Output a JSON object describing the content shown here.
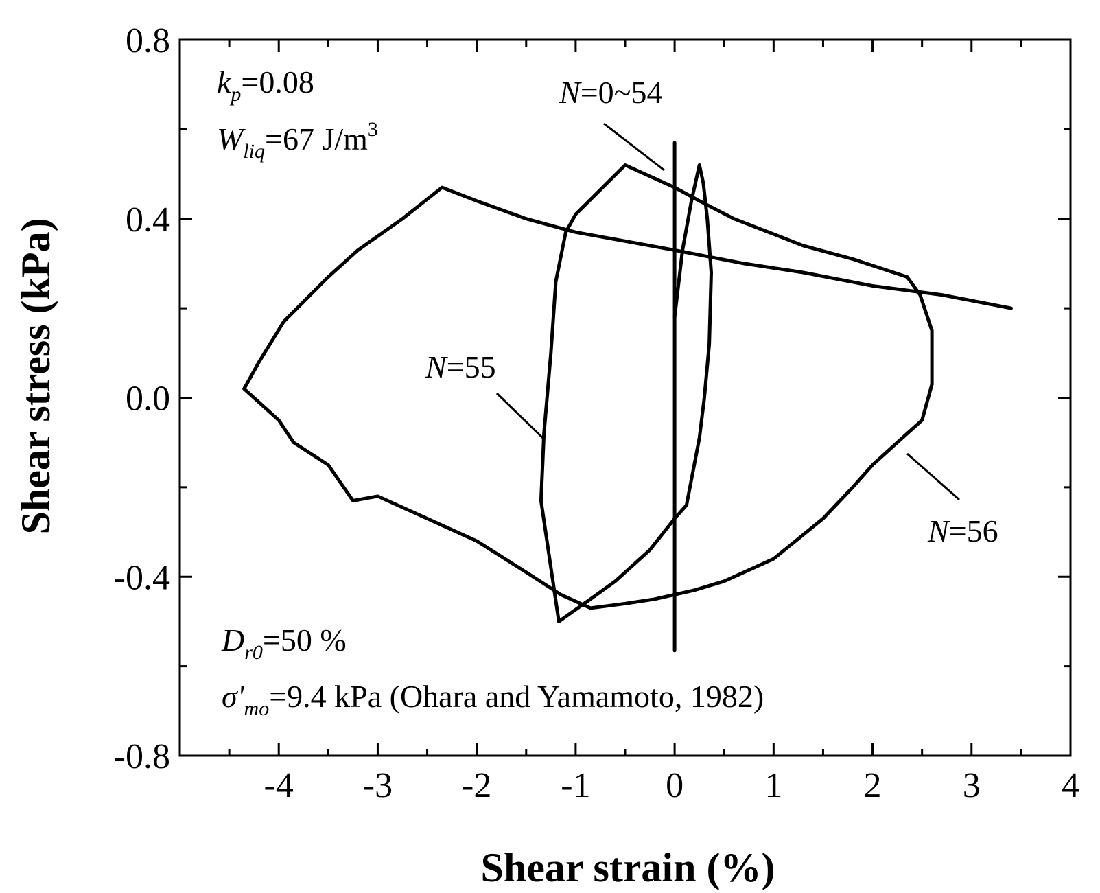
{
  "chart_data": {
    "type": "line",
    "xlabel": "Shear strain (%)",
    "ylabel": "Shear stress (kPa)",
    "xlim": [
      -5,
      4
    ],
    "ylim": [
      -0.8,
      0.8
    ],
    "x_ticks": [
      -4,
      -3,
      -2,
      -1,
      0,
      1,
      2,
      3,
      4
    ],
    "y_ticks": [
      -0.8,
      -0.4,
      0.0,
      0.4,
      0.8
    ],
    "y_tick_labels": [
      "-0.8",
      "-0.4",
      "0.0",
      "0.4",
      "0.8"
    ],
    "grid": false,
    "series": [
      {
        "label": "N=0~54",
        "points": [
          [
            0,
            -0.565
          ],
          [
            0,
            0.57
          ]
        ]
      },
      {
        "label": "N=55",
        "points": [
          [
            0,
            0.18
          ],
          [
            0.08,
            0.33
          ],
          [
            0.17,
            0.44
          ],
          [
            0.25,
            0.52
          ],
          [
            0.29,
            0.48
          ],
          [
            0.33,
            0.4
          ],
          [
            0.37,
            0.28
          ],
          [
            0.35,
            0.12
          ],
          [
            0.3,
            0.0
          ],
          [
            0.25,
            -0.09
          ],
          [
            0.12,
            -0.24
          ],
          [
            0,
            -0.27
          ],
          [
            -0.25,
            -0.34
          ],
          [
            -0.6,
            -0.41
          ],
          [
            -0.85,
            -0.45
          ],
          [
            -1.17,
            -0.5
          ],
          [
            -1.35,
            -0.23
          ],
          [
            -1.32,
            -0.08
          ],
          [
            -1.25,
            0.1
          ],
          [
            -1.2,
            0.26
          ],
          [
            -1.1,
            0.37
          ],
          [
            -1.0,
            0.41
          ],
          [
            -0.5,
            0.52
          ],
          [
            0,
            0.47
          ],
          [
            0.25,
            0.44
          ],
          [
            0.6,
            0.4
          ],
          [
            1.3,
            0.34
          ],
          [
            1.8,
            0.31
          ],
          [
            2.35,
            0.27
          ],
          [
            2.48,
            0.23
          ],
          [
            2.6,
            0.15
          ],
          [
            2.6,
            0.03
          ],
          [
            2.5,
            -0.05
          ],
          [
            2.35,
            -0.08
          ],
          [
            2.0,
            -0.15
          ],
          [
            1.8,
            -0.2
          ],
          [
            1.5,
            -0.27
          ],
          [
            1.0,
            -0.36
          ],
          [
            0.5,
            -0.41
          ],
          [
            0.2,
            -0.43
          ],
          [
            0,
            -0.44
          ],
          [
            -0.2,
            -0.45
          ],
          [
            -0.5,
            -0.46
          ],
          [
            -0.85,
            -0.47
          ],
          [
            -1.15,
            -0.44
          ],
          [
            -1.5,
            -0.39
          ],
          [
            -2.0,
            -0.32
          ],
          [
            -2.5,
            -0.27
          ],
          [
            -3.0,
            -0.22
          ],
          [
            -3.25,
            -0.23
          ],
          [
            -3.5,
            -0.15
          ],
          [
            -3.85,
            -0.1
          ],
          [
            -4.0,
            -0.05
          ],
          [
            -4.35,
            0.02
          ],
          [
            -4.2,
            0.08
          ],
          [
            -3.95,
            0.17
          ],
          [
            -3.5,
            0.27
          ],
          [
            -3.2,
            0.33
          ],
          [
            -2.75,
            0.4
          ],
          [
            -2.35,
            0.47
          ],
          [
            -2.0,
            0.44
          ],
          [
            -1.5,
            0.4
          ],
          [
            -1.0,
            0.37
          ],
          [
            -0.5,
            0.35
          ],
          [
            0,
            0.33
          ],
          [
            0.7,
            0.3
          ],
          [
            1.3,
            0.28
          ],
          [
            2.0,
            0.25
          ],
          [
            2.7,
            0.23
          ],
          [
            3.4,
            0.2
          ]
        ]
      }
    ],
    "annotations": {
      "n054": "N=0~54",
      "n55": "N=55",
      "n56": "N=56",
      "kp": "k",
      "kp_sub": "p",
      "kp_val": "=0.08",
      "wliq": "W",
      "wliq_sub": "liq",
      "wliq_val": "=67 J/m",
      "wliq_sup": "3",
      "dr0": "D",
      "dr0_sub": "r0",
      "dr0_val": "=50 %",
      "sigma": "σ'",
      "sigma_sub": "mo",
      "sigma_val": "=9.4 kPa  (Ohara and Yamamoto, 1982)"
    }
  }
}
